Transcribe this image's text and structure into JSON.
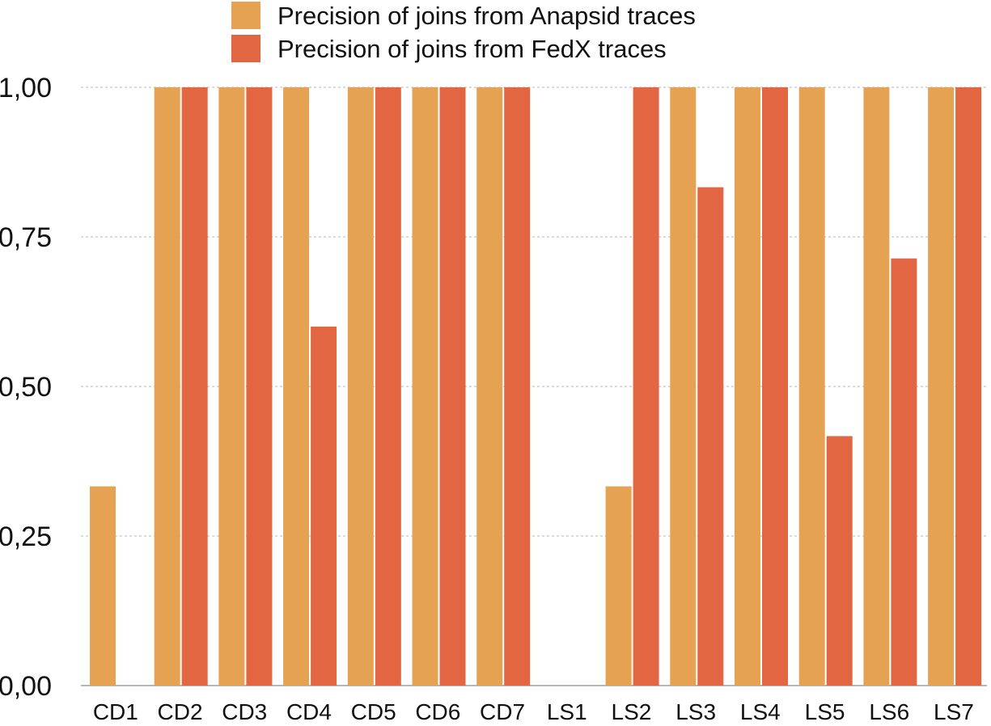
{
  "chart_data": {
    "type": "bar",
    "title": "",
    "xlabel": "",
    "ylabel": "",
    "ylim": [
      0,
      1
    ],
    "yticks": [
      0,
      0.25,
      0.5,
      0.75,
      1.0
    ],
    "ytick_labels": [
      "0,00",
      "0,25",
      "0,50",
      "0,75",
      "1,00"
    ],
    "grid": true,
    "legend_position": "top-center",
    "categories": [
      "CD1",
      "CD2",
      "CD3",
      "CD4",
      "CD5",
      "CD6",
      "CD7",
      "LS1",
      "LS2",
      "LS3",
      "LS4",
      "LS5",
      "LS6",
      "LS7"
    ],
    "series": [
      {
        "name": "Precision of joins from Anapsid traces",
        "color": "#E4A252",
        "values": [
          0.333,
          1.0,
          1.0,
          1.0,
          1.0,
          1.0,
          1.0,
          0.0,
          0.333,
          1.0,
          1.0,
          1.0,
          1.0,
          1.0
        ]
      },
      {
        "name": "Precision of joins from FedX traces",
        "color": "#E36643",
        "values": [
          0.0,
          1.0,
          1.0,
          0.6,
          1.0,
          1.0,
          1.0,
          0.0,
          1.0,
          0.833,
          1.0,
          0.417,
          0.714,
          1.0
        ]
      }
    ]
  }
}
